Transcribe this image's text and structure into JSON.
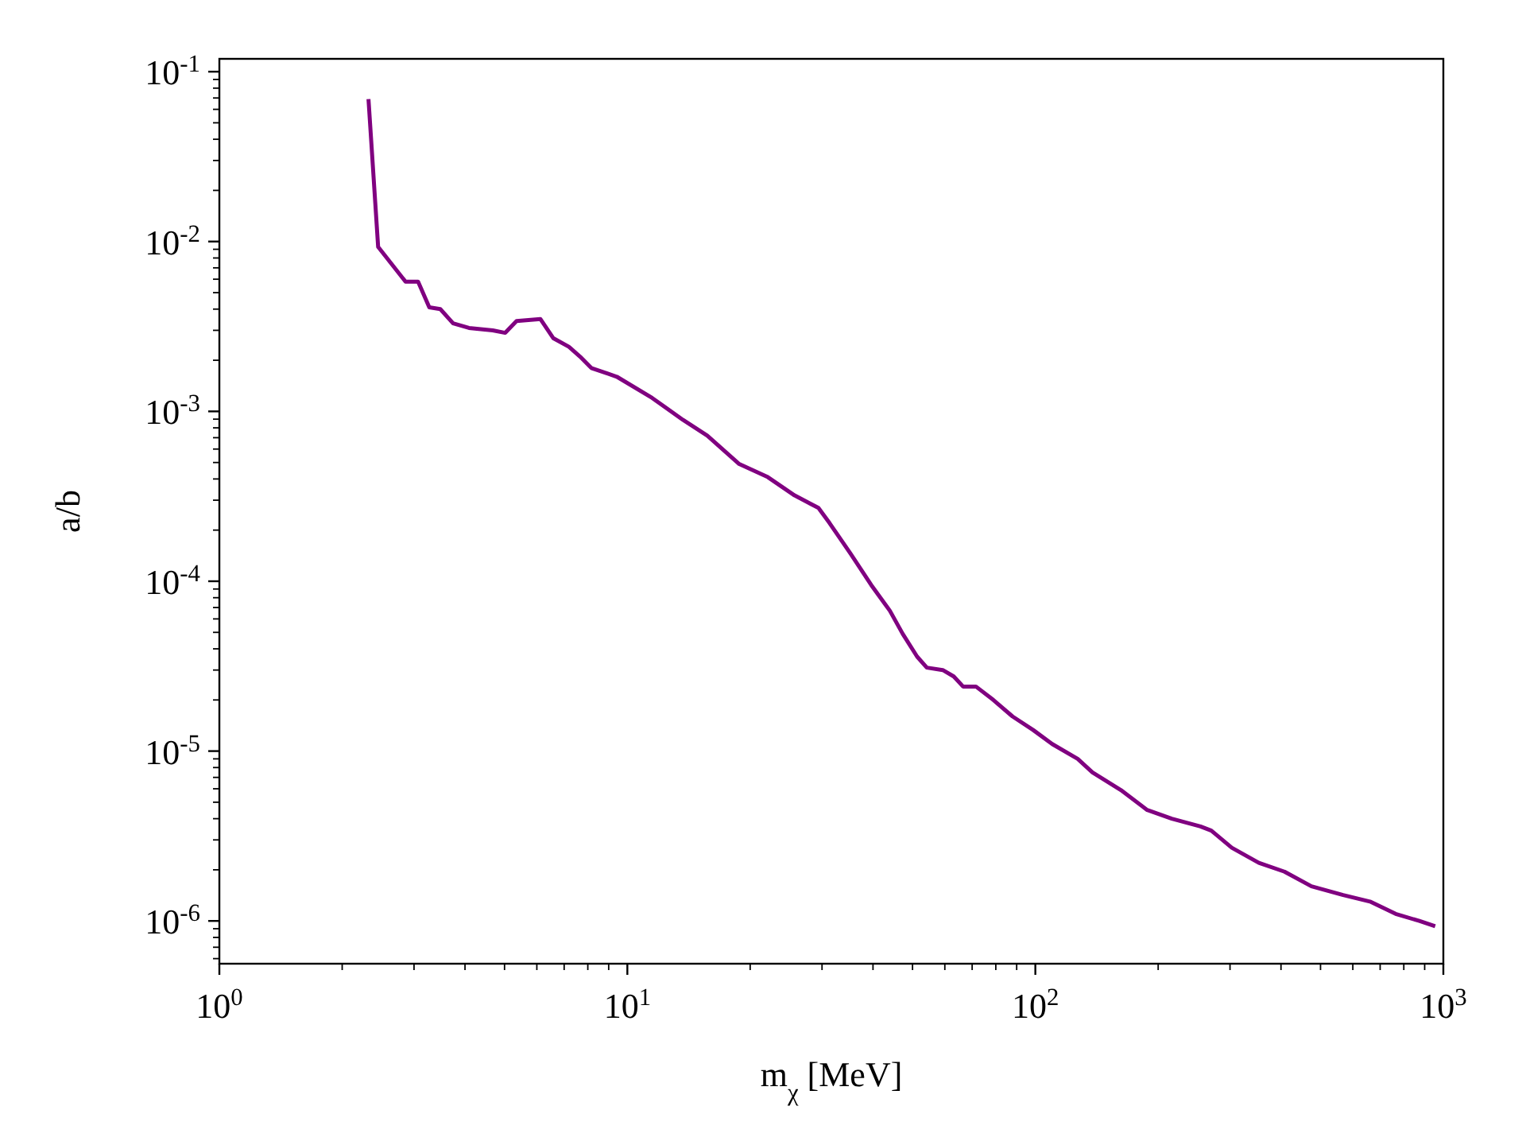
{
  "chart_data": {
    "type": "line",
    "xlabel": "m$_{χ}$ [MeV]",
    "ylabel": "a/b",
    "log": "xy",
    "grid": false,
    "xlim": [
      1,
      1000
    ],
    "ylim": [
      5.6e-07,
      0.119
    ],
    "xticks": [
      {
        "value": 1,
        "label": "10$^{0}$"
      },
      {
        "value": 10,
        "label": "10$^{1}$"
      },
      {
        "value": 100,
        "label": "10$^{2}$"
      },
      {
        "value": 1000,
        "label": "10$^{3}$"
      },
      {
        "value": 2,
        "label": null
      },
      {
        "value": 3,
        "label": null
      },
      {
        "value": 4,
        "label": null
      },
      {
        "value": 5,
        "label": null
      },
      {
        "value": 6,
        "label": null
      },
      {
        "value": 7,
        "label": null
      },
      {
        "value": 8,
        "label": null
      },
      {
        "value": 9,
        "label": null
      },
      {
        "value": 20,
        "label": null
      },
      {
        "value": 30,
        "label": null
      },
      {
        "value": 40,
        "label": null
      },
      {
        "value": 50,
        "label": null
      },
      {
        "value": 60,
        "label": null
      },
      {
        "value": 70,
        "label": null
      },
      {
        "value": 80,
        "label": null
      },
      {
        "value": 90,
        "label": null
      },
      {
        "value": 200,
        "label": null
      },
      {
        "value": 300,
        "label": null
      },
      {
        "value": 400,
        "label": null
      },
      {
        "value": 500,
        "label": null
      },
      {
        "value": 600,
        "label": null
      },
      {
        "value": 700,
        "label": null
      },
      {
        "value": 800,
        "label": null
      },
      {
        "value": 900,
        "label": null
      }
    ],
    "yticks": [
      {
        "value": 0.1,
        "label": "10$^{-1}$"
      },
      {
        "value": 0.01,
        "label": "10$^{-2}$"
      },
      {
        "value": 0.001,
        "label": "10$^{-3}$"
      },
      {
        "value": 0.0001,
        "label": "10$^{-4}$"
      },
      {
        "value": 1e-05,
        "label": "10$^{-5}$"
      },
      {
        "value": 1e-06,
        "label": "10$^{-6}$"
      },
      {
        "value": 0.02,
        "label": null
      },
      {
        "value": 0.03,
        "label": null
      },
      {
        "value": 0.04,
        "label": null
      },
      {
        "value": 0.05,
        "label": null
      },
      {
        "value": 0.06,
        "label": null
      },
      {
        "value": 0.07,
        "label": null
      },
      {
        "value": 0.08,
        "label": null
      },
      {
        "value": 0.09,
        "label": null
      },
      {
        "value": 0.002,
        "label": null
      },
      {
        "value": 0.003,
        "label": null
      },
      {
        "value": 0.004,
        "label": null
      },
      {
        "value": 0.005,
        "label": null
      },
      {
        "value": 0.006,
        "label": null
      },
      {
        "value": 0.007,
        "label": null
      },
      {
        "value": 0.008,
        "label": null
      },
      {
        "value": 0.009,
        "label": null
      },
      {
        "value": 0.0002,
        "label": null
      },
      {
        "value": 0.0003,
        "label": null
      },
      {
        "value": 0.0004,
        "label": null
      },
      {
        "value": 0.0005,
        "label": null
      },
      {
        "value": 0.0006,
        "label": null
      },
      {
        "value": 0.0007,
        "label": null
      },
      {
        "value": 0.0008,
        "label": null
      },
      {
        "value": 0.0009,
        "label": null
      },
      {
        "value": 2e-05,
        "label": null
      },
      {
        "value": 3e-05,
        "label": null
      },
      {
        "value": 4e-05,
        "label": null
      },
      {
        "value": 5e-05,
        "label": null
      },
      {
        "value": 6e-05,
        "label": null
      },
      {
        "value": 7e-05,
        "label": null
      },
      {
        "value": 8e-05,
        "label": null
      },
      {
        "value": 9e-05,
        "label": null
      },
      {
        "value": 2e-06,
        "label": null
      },
      {
        "value": 3e-06,
        "label": null
      },
      {
        "value": 4e-06,
        "label": null
      },
      {
        "value": 5e-06,
        "label": null
      },
      {
        "value": 6e-06,
        "label": null
      },
      {
        "value": 7e-06,
        "label": null
      },
      {
        "value": 8e-06,
        "label": null
      },
      {
        "value": 9e-06,
        "label": null
      },
      {
        "value": 6e-07,
        "label": null
      },
      {
        "value": 7e-07,
        "label": null
      },
      {
        "value": 8e-07,
        "label": null
      },
      {
        "value": 9e-07,
        "label": null
      }
    ],
    "series": [
      {
        "color": "#800080",
        "x": [
          2.32,
          2.45,
          2.86,
          3.07,
          3.27,
          3.48,
          3.74,
          4.09,
          4.68,
          5.02,
          5.35,
          6.12,
          6.58,
          7.19,
          7.66,
          8.16,
          9.42,
          11.5,
          13.7,
          15.7,
          18.8,
          22.1,
          25.7,
          29.4,
          31.3,
          35.2,
          39.6,
          44.0,
          47.3,
          51.3,
          54.2,
          59.3,
          63.1,
          66.5,
          71.5,
          78.9,
          87.9,
          98.8,
          110,
          127,
          138,
          162,
          188,
          216,
          254,
          270,
          303,
          353,
          408,
          475,
          568,
          661,
          764,
          873,
          955
        ],
        "values": [
          0.069,
          0.0093,
          0.0058,
          0.0058,
          0.0041,
          0.004,
          0.0033,
          0.0031,
          0.003,
          0.0029,
          0.0034,
          0.0035,
          0.0027,
          0.0024,
          0.0021,
          0.0018,
          0.0016,
          0.0012,
          0.00089,
          0.00072,
          0.00049,
          0.00041,
          0.00032,
          0.00027,
          0.00022,
          0.000146,
          9.5e-05,
          6.7e-05,
          4.9e-05,
          3.6e-05,
          3.1e-05,
          3e-05,
          2.75e-05,
          2.4e-05,
          2.4e-05,
          2e-05,
          1.6e-05,
          1.33e-05,
          1.1e-05,
          9e-06,
          7.5e-06,
          5.9e-06,
          4.5e-06,
          4e-06,
          3.6e-06,
          3.4e-06,
          2.7e-06,
          2.2e-06,
          1.95e-06,
          1.6e-06,
          1.42e-06,
          1.3e-06,
          1.1e-06,
          1e-06,
          9.3e-07
        ]
      }
    ]
  }
}
